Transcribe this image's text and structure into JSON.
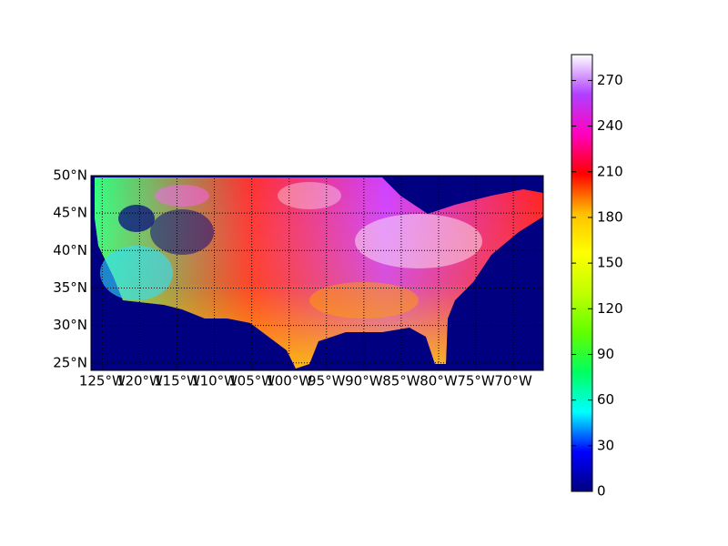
{
  "chart_data": {
    "type": "map",
    "xlim": [
      -126.5,
      -66
    ],
    "ylim": [
      24,
      50
    ],
    "xticks": [
      {
        "value": -125,
        "label": "125°W"
      },
      {
        "value": -120,
        "label": "120°W"
      },
      {
        "value": -115,
        "label": "115°W"
      },
      {
        "value": -110,
        "label": "110°W"
      },
      {
        "value": -105,
        "label": "105°W"
      },
      {
        "value": -100,
        "label": "100°W"
      },
      {
        "value": -95,
        "label": "95°W"
      },
      {
        "value": -90,
        "label": "90°W"
      },
      {
        "value": -85,
        "label": "85°W"
      },
      {
        "value": -80,
        "label": "80°W"
      },
      {
        "value": -75,
        "label": "75°W"
      },
      {
        "value": -70,
        "label": "70°W"
      }
    ],
    "yticks": [
      {
        "value": 25,
        "label": "25°N"
      },
      {
        "value": 30,
        "label": "30°N"
      },
      {
        "value": 35,
        "label": "35°N"
      },
      {
        "value": 40,
        "label": "40°N"
      },
      {
        "value": 45,
        "label": "45°N"
      },
      {
        "value": 50,
        "label": "50°N"
      }
    ],
    "grid": true,
    "colorbar": {
      "lim": [
        0,
        287
      ],
      "ticks": [
        0,
        30,
        60,
        90,
        120,
        150,
        180,
        210,
        240,
        270
      ],
      "colormap_colors": [
        "#000080",
        "#0000ff",
        "#00ffff",
        "#00ff60",
        "#60ff00",
        "#c0ff00",
        "#ffff00",
        "#ffc000",
        "#ff0000",
        "#ff00c0",
        "#b040ff",
        "#ffffff"
      ]
    }
  }
}
